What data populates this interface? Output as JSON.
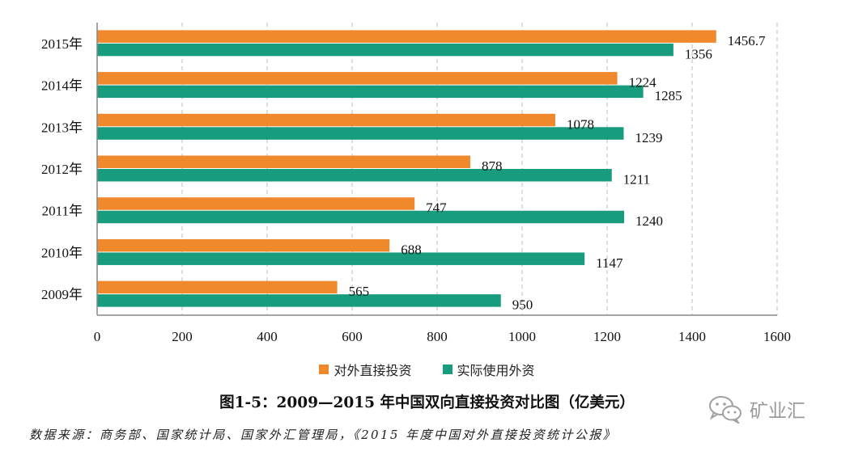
{
  "colors": {
    "outward": "#F0892C",
    "inward": "#179C7E",
    "grid": "#C8C8C8",
    "axis": "#888888"
  },
  "chart_data": {
    "type": "bar",
    "orientation": "horizontal",
    "categories": [
      "2015年",
      "2014年",
      "2013年",
      "2012年",
      "2011年",
      "2010年",
      "2009年"
    ],
    "series": [
      {
        "name": "对外直接投资",
        "values": [
          1456.7,
          1224,
          1078,
          878,
          747,
          688,
          565
        ]
      },
      {
        "name": "实际使用外资",
        "values": [
          1356,
          1285,
          1239,
          1211,
          1240,
          1147,
          950
        ]
      }
    ],
    "value_labels": [
      [
        "1456.7",
        "1224",
        "1078",
        "878",
        "747",
        "688",
        "565"
      ],
      [
        "1356",
        "1285",
        "1239",
        "1211",
        "1240",
        "1147",
        "950"
      ]
    ],
    "xlim": [
      0,
      1600
    ],
    "xticks": [
      "0",
      "200",
      "400",
      "600",
      "800",
      "1000",
      "1200",
      "1400",
      "1600"
    ],
    "grid": "vertical dashed",
    "legend_position": "bottom",
    "title": "图1-5：2009—2015 年中国双向直接投资对比图（亿美元）"
  },
  "source": "数据来源：商务部、国家统计局、国家外汇管理局，《2015 年度中国对外直接投资统计公报》",
  "watermark": {
    "text": "矿业汇",
    "icon": "wechat-icon"
  }
}
